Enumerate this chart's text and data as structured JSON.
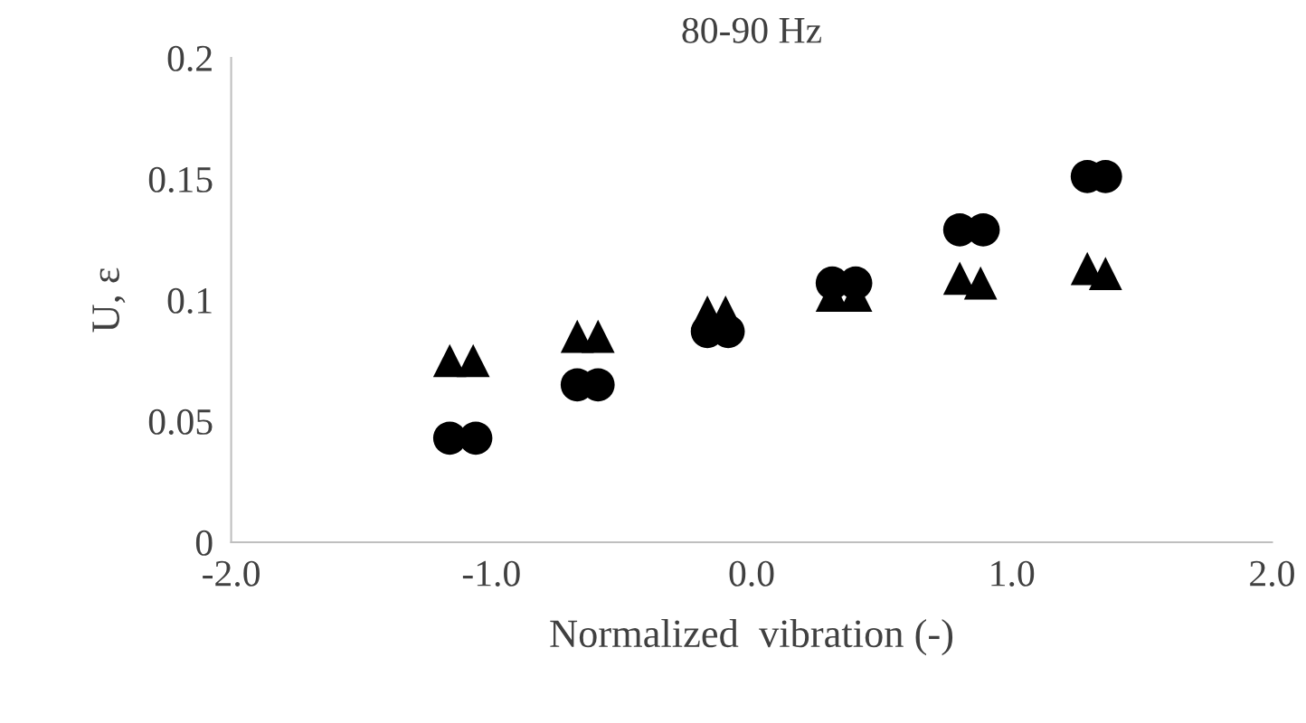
{
  "chart_data": {
    "type": "scatter",
    "title": "80-90 Hz",
    "xlabel": "Normalized  vibration (-)",
    "ylabel": "U, ε",
    "xlim": [
      -2.0,
      2.0
    ],
    "xticks": [
      {
        "value": -2,
        "label": "-2.0"
      },
      {
        "value": -1,
        "label": "-1.0"
      },
      {
        "value": 0,
        "label": "0.0"
      },
      {
        "value": 1,
        "label": "1.0"
      },
      {
        "value": 2,
        "label": "2.0"
      }
    ],
    "ylim": [
      0,
      0.2
    ],
    "yticks": [
      0,
      0.05,
      0.1,
      0.15,
      0.2
    ],
    "grid": false,
    "legend": false,
    "series": [
      {
        "color": "#000000",
        "marker": "triangle",
        "x": [
          -1.16,
          -1.07,
          -0.67,
          -0.59,
          -0.17,
          -0.1,
          0.31,
          0.4,
          0.8,
          0.88,
          1.29,
          1.36
        ],
        "values": [
          0.075,
          0.075,
          0.085,
          0.085,
          0.095,
          0.095,
          0.102,
          0.102,
          0.109,
          0.107,
          0.113,
          0.111
        ]
      },
      {
        "color": "#000000",
        "marker": "circle",
        "x": [
          -1.16,
          -1.06,
          -0.67,
          -0.59,
          -0.17,
          -0.09,
          0.31,
          0.4,
          0.8,
          0.89,
          1.29,
          1.36
        ],
        "values": [
          0.043,
          0.043,
          0.065,
          0.065,
          0.087,
          0.087,
          0.107,
          0.107,
          0.129,
          0.129,
          0.151,
          0.151
        ]
      }
    ]
  }
}
